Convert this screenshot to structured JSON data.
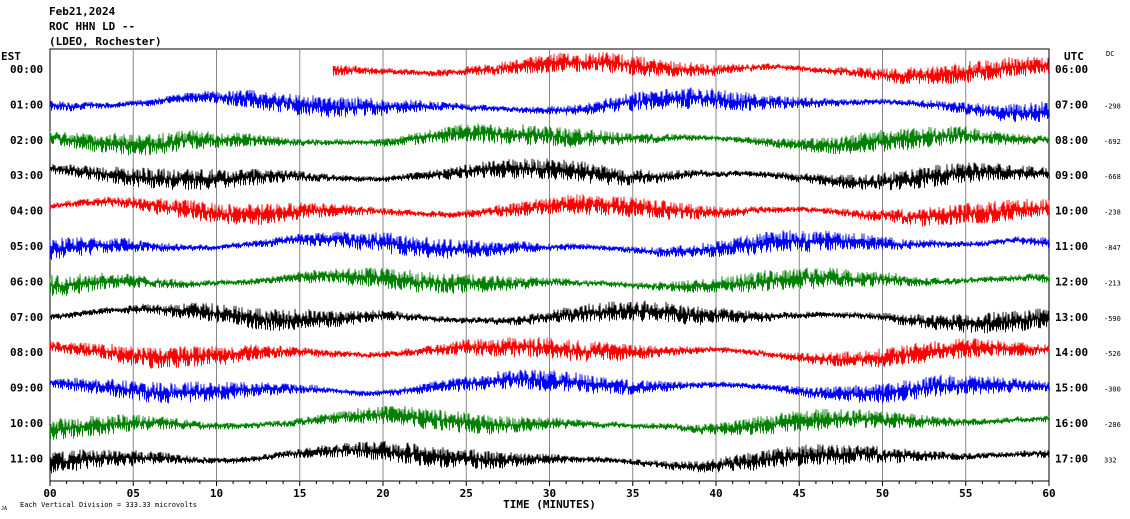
{
  "header": {
    "date": "Feb21,2024",
    "station": "ROC HHN LD --",
    "network": "(LDEO, Rochester)"
  },
  "left_axis_label": "EST",
  "right_axis_label": "UTC",
  "dc_label": "DC",
  "footer_note": "Each Vertical Division =  333.33 microvolts",
  "corner_mark": "JA",
  "chart_data": {
    "type": "line",
    "title": "",
    "xlabel": "TIME (MINUTES)",
    "ylabel": "",
    "xlim": [
      0,
      60
    ],
    "x_ticks": [
      "00",
      "05",
      "10",
      "15",
      "20",
      "25",
      "30",
      "35",
      "40",
      "45",
      "50",
      "55",
      "60"
    ],
    "grid": "vertical lines every 5 minutes",
    "color_cycle": [
      "#ff0000",
      "#0000ff",
      "#008000",
      "#000000"
    ],
    "rows": [
      {
        "est": "00:00",
        "utc": "06:00",
        "dc": "",
        "color": "#ff0000",
        "start_minute": 17
      },
      {
        "est": "01:00",
        "utc": "07:00",
        "dc": "-298",
        "color": "#0000ff",
        "start_minute": 0
      },
      {
        "est": "02:00",
        "utc": "08:00",
        "dc": "-692",
        "color": "#008000",
        "start_minute": 0
      },
      {
        "est": "03:00",
        "utc": "09:00",
        "dc": "-668",
        "color": "#000000",
        "start_minute": 0
      },
      {
        "est": "04:00",
        "utc": "10:00",
        "dc": "-238",
        "color": "#ff0000",
        "start_minute": 0
      },
      {
        "est": "05:00",
        "utc": "11:00",
        "dc": "-847",
        "color": "#0000ff",
        "start_minute": 0
      },
      {
        "est": "06:00",
        "utc": "12:00",
        "dc": "-213",
        "color": "#008000",
        "start_minute": 0
      },
      {
        "est": "07:00",
        "utc": "13:00",
        "dc": "-590",
        "color": "#000000",
        "start_minute": 0
      },
      {
        "est": "08:00",
        "utc": "14:00",
        "dc": "-526",
        "color": "#ff0000",
        "start_minute": 0
      },
      {
        "est": "09:00",
        "utc": "15:00",
        "dc": "-300",
        "color": "#0000ff",
        "start_minute": 0
      },
      {
        "est": "10:00",
        "utc": "16:00",
        "dc": "-286",
        "color": "#008000",
        "start_minute": 0
      },
      {
        "est": "11:00",
        "utc": "17:00",
        "dc": "332",
        "color": "#000000",
        "start_minute": 0
      }
    ]
  }
}
